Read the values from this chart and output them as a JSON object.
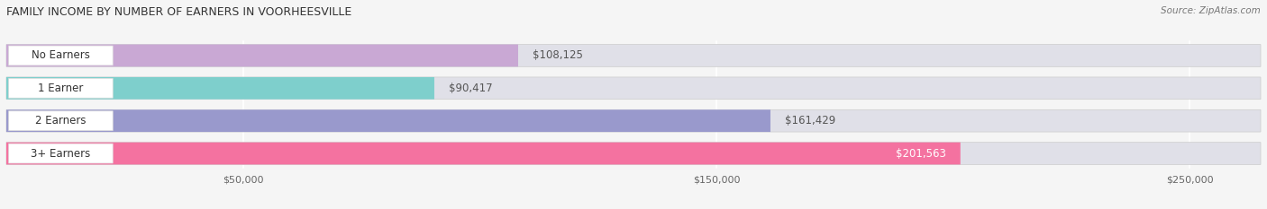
{
  "title": "FAMILY INCOME BY NUMBER OF EARNERS IN VOORHEESVILLE",
  "source": "Source: ZipAtlas.com",
  "categories": [
    "No Earners",
    "1 Earner",
    "2 Earners",
    "3+ Earners"
  ],
  "values": [
    108125,
    90417,
    161429,
    201563
  ],
  "value_labels": [
    "$108,125",
    "$90,417",
    "$161,429",
    "$201,563"
  ],
  "bar_colors": [
    "#c9a8d4",
    "#7ecfcc",
    "#9999cc",
    "#f472a0"
  ],
  "bar_bg_color": "#e0e0e8",
  "background_color": "#f5f5f5",
  "title_fontsize": 9,
  "source_fontsize": 7.5,
  "label_fontsize": 8.5,
  "tick_fontsize": 8,
  "xmin": 0,
  "xmax": 265000,
  "xticks": [
    50000,
    150000,
    250000
  ],
  "xtick_labels": [
    "$50,000",
    "$150,000",
    "$250,000"
  ],
  "value_label_inside_idx": 3
}
